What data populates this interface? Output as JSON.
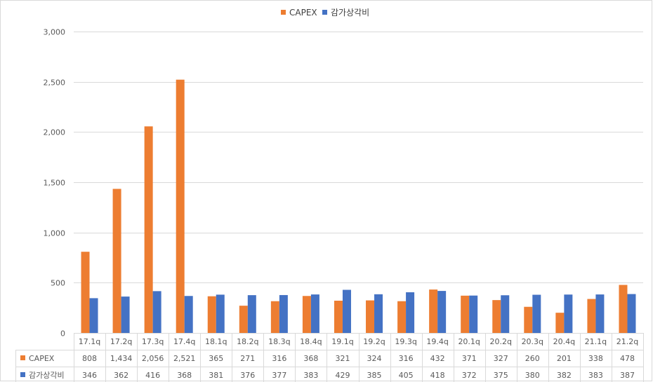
{
  "chart_data": {
    "type": "bar",
    "categories": [
      "17.1q",
      "17.2q",
      "17.3q",
      "17.4q",
      "18.1q",
      "18.2q",
      "18.3q",
      "18.4q",
      "19.1q",
      "19.2q",
      "19.3q",
      "19.4q",
      "20.1q",
      "20.2q",
      "20.3q",
      "20.4q",
      "21.1q",
      "21.2q"
    ],
    "series": [
      {
        "name": "CAPEX",
        "color": "#ED7D31",
        "values": [
          808,
          1434,
          2056,
          2521,
          365,
          271,
          316,
          368,
          321,
          324,
          316,
          432,
          371,
          327,
          260,
          201,
          338,
          478
        ]
      },
      {
        "name": "감가상각비",
        "color": "#4472C4",
        "values": [
          346,
          362,
          416,
          368,
          381,
          376,
          377,
          383,
          429,
          385,
          405,
          418,
          372,
          375,
          380,
          382,
          383,
          387
        ]
      }
    ],
    "ylim": [
      0,
      3000
    ],
    "yticks": [
      0,
      500,
      1000,
      1500,
      2000,
      2500,
      3000
    ],
    "ytick_labels": [
      "0",
      "500",
      "1,000",
      "1,500",
      "2,000",
      "2,500",
      "3,000"
    ],
    "grid": true,
    "legend": "top-center",
    "data_table": true,
    "table_rows": [
      {
        "series": "CAPEX",
        "cells": [
          "808",
          "1,434",
          "2,056",
          "2,521",
          "365",
          "271",
          "316",
          "368",
          "321",
          "324",
          "316",
          "432",
          "371",
          "327",
          "260",
          "201",
          "338",
          "478"
        ]
      },
      {
        "series": "감가상각비",
        "cells": [
          "346",
          "362",
          "416",
          "368",
          "381",
          "376",
          "377",
          "383",
          "429",
          "385",
          "405",
          "418",
          "372",
          "375",
          "380",
          "382",
          "383",
          "387"
        ]
      }
    ]
  }
}
